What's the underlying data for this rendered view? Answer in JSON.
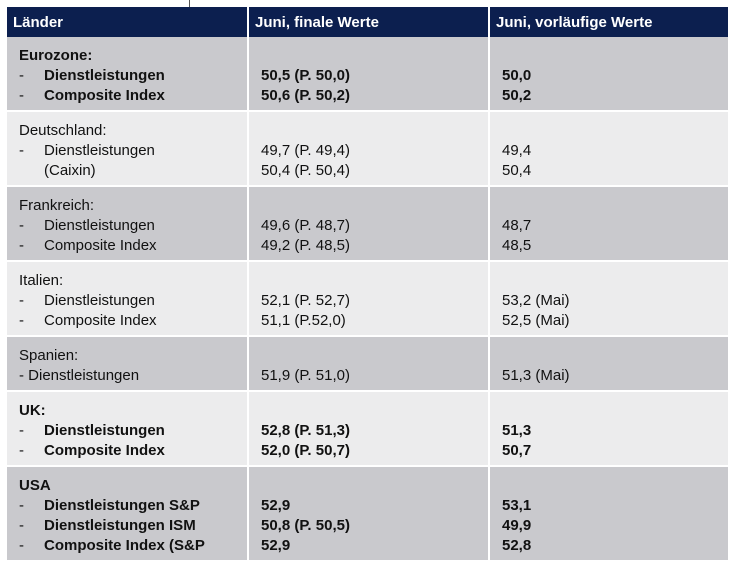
{
  "header": {
    "col1": "Länder",
    "col2": "Juni, finale Werte",
    "col3": "Juni, vorläufige Werte"
  },
  "rows": [
    {
      "country": "Eurozone:",
      "bold": true,
      "shade": "dark",
      "items": [
        {
          "label": "Dienstleistungen",
          "final": "50,5 (P. 50,0)",
          "prelim": "50,0"
        },
        {
          "label": "Composite Index",
          "final": "50,6 (P. 50,2)",
          "prelim": "50,2"
        }
      ]
    },
    {
      "country": "Deutschland:",
      "bold": false,
      "shade": "light",
      "items": [
        {
          "label": "Dienstleistungen",
          "final": "49,7 (P. 49,4)",
          "prelim": "49,4"
        },
        {
          "label": "(Caixin)",
          "final": "50,4 (P. 50,4)",
          "prelim": "50,4",
          "continuation": true
        }
      ]
    },
    {
      "country": "Frankreich:",
      "bold": false,
      "shade": "dark",
      "items": [
        {
          "label": "Dienstleistungen",
          "final": "49,6 (P. 48,7)",
          "prelim": "48,7"
        },
        {
          "label": "Composite Index",
          "final": "49,2 (P. 48,5)",
          "prelim": "48,5"
        }
      ]
    },
    {
      "country": "Italien:",
      "bold": false,
      "shade": "light",
      "items": [
        {
          "label": "Dienstleistungen",
          "final": "52,1 (P. 52,7)",
          "prelim": "53,2 (Mai)"
        },
        {
          "label": "Composite Index",
          "final": "51,1 (P.52,0)",
          "prelim": "52,5 (Mai)"
        }
      ]
    },
    {
      "country": "Spanien:",
      "bold": false,
      "shade": "dark",
      "items": [
        {
          "label": "- Dienstleistungen",
          "final": "51,9 (P. 51,0)",
          "prelim": "51,3 (Mai)",
          "inline_dash": true
        }
      ]
    },
    {
      "country": "UK:",
      "bold": true,
      "shade": "light",
      "items": [
        {
          "label": "Dienstleistungen",
          "final": "52,8 (P. 51,3)",
          "prelim": "51,3"
        },
        {
          "label": "Composite Index",
          "final": "52,0 (P. 50,7)",
          "prelim": "50,7"
        }
      ]
    },
    {
      "country": "USA",
      "bold": true,
      "shade": "dark",
      "items": [
        {
          "label": "Dienstleistungen S&P",
          "final": "52,9",
          "prelim": "53,1"
        },
        {
          "label": "Dienstleistungen ISM",
          "final": "50,8 (P. 50,5)",
          "prelim": "49,9"
        },
        {
          "label": "Composite Index (S&P",
          "final": "52,9",
          "prelim": "52,8"
        }
      ]
    }
  ],
  "dash": "-"
}
